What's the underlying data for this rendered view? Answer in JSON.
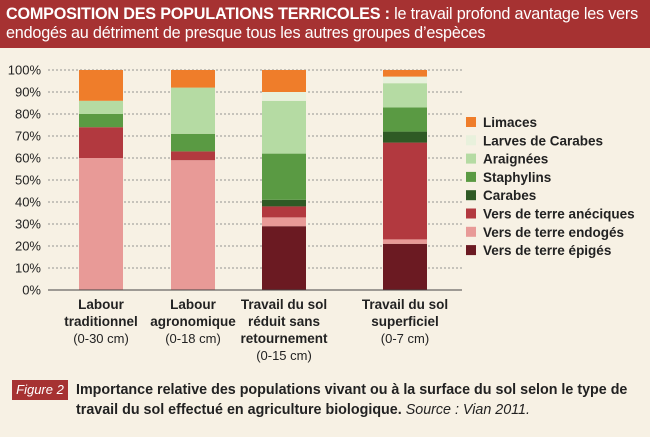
{
  "header": {
    "title_bold": "COMPOSITION DES POPULATIONS TERRICOLES :",
    "title_rest": "le travail profond avantage les vers endogés au détriment de presque tous les autres groupes d’espèces"
  },
  "figure": {
    "badge": "Figure 2",
    "caption": "Importance relative des populations vivant ou à la surface du sol selon le type de travail du sol effectué en agriculture biologique.",
    "source": "Source : Vian 2011."
  },
  "colors": {
    "header": "#a63232",
    "background": "#f7f1e4"
  },
  "chart_data": {
    "type": "bar",
    "stacked": true,
    "title": "",
    "xlabel": "",
    "ylabel": "",
    "ylim": [
      0,
      100
    ],
    "yticks": [
      "0%",
      "10%",
      "20%",
      "30%",
      "40%",
      "50%",
      "60%",
      "70%",
      "80%",
      "90%",
      "100%"
    ],
    "grid": "dashed horizontal",
    "legend_position": "right",
    "categories": [
      {
        "name": "Labour traditionnel",
        "sub": "(0-30 cm)"
      },
      {
        "name": "Labour agronomique",
        "sub": "(0-18 cm)"
      },
      {
        "name": "Travail du sol réduit sans retournement",
        "sub": "(0-15 cm)"
      },
      {
        "name": "Travail du sol superficiel",
        "sub": "(0-7 cm)"
      }
    ],
    "category_lines": [
      [
        "Labour",
        "traditionnel",
        "(0-30 cm)"
      ],
      [
        "Labour",
        "agronomique",
        "(0-18 cm)"
      ],
      [
        "Travail du sol",
        "réduit sans",
        "retournement",
        "(0-15 cm)"
      ],
      [
        "Travail du sol",
        "superficiel",
        "(0-7 cm)"
      ]
    ],
    "series": [
      {
        "name": "Vers de terre épigés",
        "color": "#6b1a22",
        "values": [
          0,
          0,
          29,
          21
        ]
      },
      {
        "name": "Vers de terre endogés",
        "color": "#e89a97",
        "values": [
          60,
          59,
          4,
          2
        ]
      },
      {
        "name": "Vers de terre anéciques",
        "color": "#b2393f",
        "values": [
          14,
          4,
          5,
          44
        ]
      },
      {
        "name": "Carabes",
        "color": "#2f5a25",
        "values": [
          0,
          0,
          3,
          5
        ]
      },
      {
        "name": "Staphylins",
        "color": "#5a9a43",
        "values": [
          6,
          8,
          21,
          11
        ]
      },
      {
        "name": "Araignées",
        "color": "#b5dba3",
        "values": [
          6,
          21,
          24,
          11
        ]
      },
      {
        "name": "Larves de Carabes",
        "color": "#e8f1dc",
        "values": [
          0,
          0,
          4,
          3
        ]
      },
      {
        "name": "Limaces",
        "color": "#ef7d2a",
        "values": [
          14,
          8,
          10,
          3
        ]
      }
    ],
    "legend_order": [
      "Limaces",
      "Larves de Carabes",
      "Araignées",
      "Staphylins",
      "Carabes",
      "Vers de terre anéciques",
      "Vers de terre endogés",
      "Vers de terre épigés"
    ]
  }
}
